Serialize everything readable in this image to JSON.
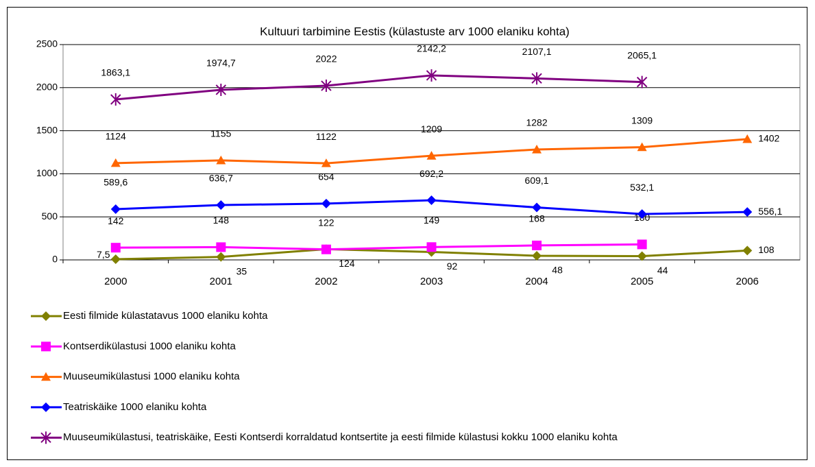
{
  "chart_data": {
    "type": "line",
    "title": "Kultuuri tarbimine Eestis (külastuste arv 1000 elaniku kohta)",
    "categories": [
      "2000",
      "2001",
      "2002",
      "2003",
      "2004",
      "2005",
      "2006"
    ],
    "ylim": [
      0,
      2500
    ],
    "yticks": [
      0,
      500,
      1000,
      1500,
      2000,
      2500
    ],
    "grid": true,
    "legend": "bottom",
    "series": [
      {
        "name": "Eesti filmide külastatavus 1000 elaniku kohta",
        "color": "#808000",
        "marker": "diamond",
        "values": [
          7.5,
          35,
          124,
          92,
          48,
          44,
          108
        ],
        "value_labels": [
          "7,5",
          "35",
          "124",
          "92",
          "48",
          "44",
          "108"
        ]
      },
      {
        "name": "Kontserdikülastusi 1000 elaniku kohta",
        "color": "#ff00ff",
        "marker": "square",
        "values": [
          142,
          148,
          122,
          149,
          168,
          180,
          null
        ]
      },
      {
        "name": "Muuseumikülastusi 1000 elaniku kohta",
        "color": "#ff6600",
        "marker": "triangle",
        "values": [
          1124,
          1155,
          1122,
          1209,
          1282,
          1309,
          1402
        ]
      },
      {
        "name": "Teatriskäike 1000 elaniku kohta",
        "color": "#0000ff",
        "marker": "diamond",
        "values": [
          589.6,
          636.7,
          654,
          692.2,
          609.1,
          532.1,
          556.1
        ],
        "value_labels": [
          "589,6",
          "636,7",
          "654",
          "692,2",
          "609,1",
          "532,1",
          "556,1"
        ]
      },
      {
        "name": "Muuseumikülastusi, teatriskäike, Eesti Kontserdi korraldatud kontsertite ja eesti filmide külastusi kokku 1000 elaniku kohta",
        "color": "#800080",
        "marker": "star",
        "values": [
          1863.1,
          1974.7,
          2022,
          2142.2,
          2107.1,
          2065.1,
          null
        ],
        "value_labels": [
          "1863,1",
          "1974,7",
          "2022",
          "2142,2",
          "2107,1",
          "2065,1",
          null
        ]
      }
    ]
  }
}
